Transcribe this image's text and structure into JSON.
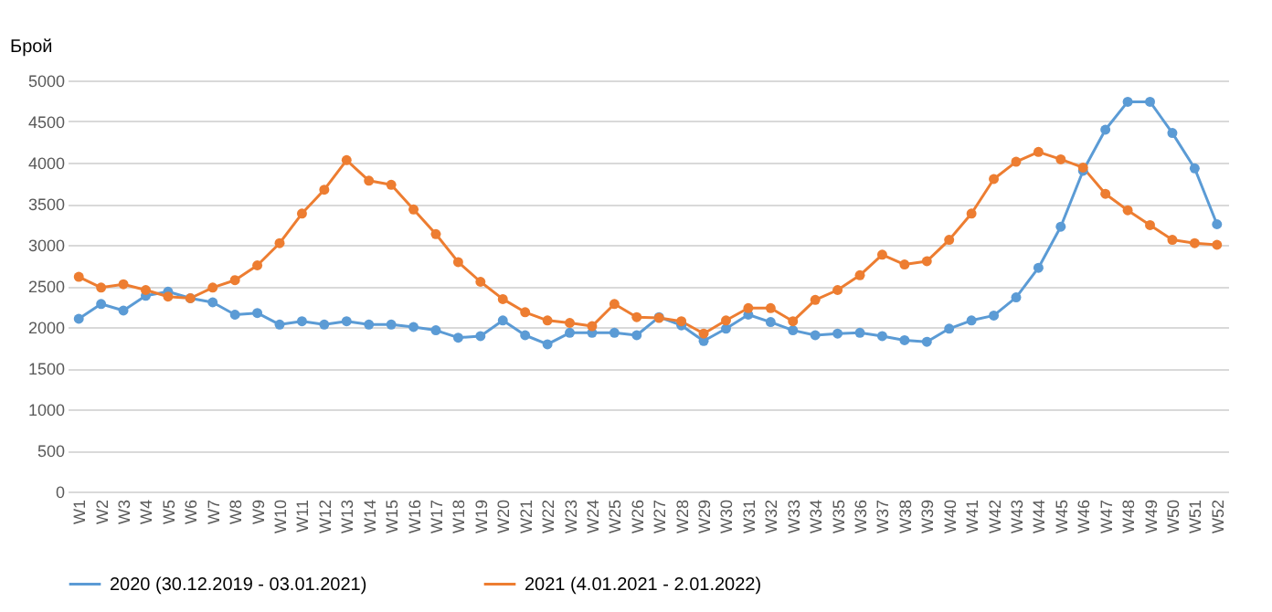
{
  "chart_data": {
    "type": "line",
    "ylabel": "Брой",
    "categories": [
      "W1",
      "W2",
      "W3",
      "W4",
      "W5",
      "W6",
      "W7",
      "W8",
      "W9",
      "W10",
      "W11",
      "W12",
      "W13",
      "W14",
      "W15",
      "W16",
      "W17",
      "W18",
      "W19",
      "W20",
      "W21",
      "W22",
      "W23",
      "W24",
      "W25",
      "W26",
      "W27",
      "W28",
      "W29",
      "W30",
      "W31",
      "W32",
      "W33",
      "W34",
      "W35",
      "W36",
      "W37",
      "W38",
      "W39",
      "W40",
      "W41",
      "W42",
      "W43",
      "W44",
      "W45",
      "W46",
      "W47",
      "W48",
      "W49",
      "W50",
      "W51",
      "W52"
    ],
    "series": [
      {
        "name": "2020 (30.12.2019 - 03.01.2021)",
        "color": "#5b9bd5",
        "values": [
          2100,
          2280,
          2200,
          2380,
          2430,
          2350,
          2300,
          2150,
          2170,
          2030,
          2070,
          2030,
          2070,
          2030,
          2030,
          2000,
          1960,
          1870,
          1890,
          2080,
          1900,
          1790,
          1930,
          1930,
          1930,
          1900,
          2120,
          2020,
          1830,
          1980,
          2150,
          2060,
          1960,
          1900,
          1920,
          1930,
          1890,
          1840,
          1820,
          1980,
          2080,
          2140,
          2360,
          2720,
          3220,
          3900,
          4400,
          4740,
          4740,
          4360,
          3930,
          3250
        ]
      },
      {
        "name": "2021 (4.01.2021 - 2.01.2022)",
        "color": "#ed7d31",
        "values": [
          2610,
          2480,
          2520,
          2450,
          2370,
          2350,
          2480,
          2570,
          2750,
          3020,
          3380,
          3670,
          4030,
          3780,
          3730,
          3430,
          3130,
          2790,
          2550,
          2340,
          2180,
          2080,
          2050,
          2010,
          2280,
          2120,
          2110,
          2070,
          1920,
          2080,
          2230,
          2230,
          2070,
          2330,
          2450,
          2630,
          2880,
          2760,
          2800,
          3060,
          3380,
          3800,
          4010,
          4130,
          4040,
          3940,
          3620,
          3420,
          3240,
          3060,
          3020,
          3000
        ]
      }
    ],
    "ylim": [
      0,
      5000
    ],
    "yticks": [
      0,
      500,
      1000,
      1500,
      2000,
      2500,
      3000,
      3500,
      4000,
      4500,
      5000
    ],
    "grid": "y",
    "legend": "bottom",
    "marker": "circle",
    "line_style": "solid"
  }
}
